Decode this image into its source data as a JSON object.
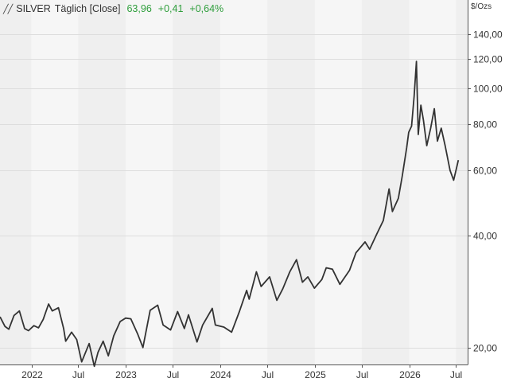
{
  "header": {
    "symbol_icon": "line-chart-icon",
    "title": "SILVER",
    "mode": "Täglich [Close]",
    "last": "63,96",
    "change": "+0,41",
    "change_pct": "+0,64%",
    "unit": "$/Ozs"
  },
  "colors": {
    "line": "#333333",
    "positive": "#2e9e3b",
    "band_dark": "#efefef",
    "band_light": "#f6f6f6",
    "grid": "#dddddd"
  },
  "chart_data": {
    "type": "line",
    "title": "SILVER",
    "xlabel": "",
    "ylabel": "$/Ozs",
    "scale": "log",
    "ylim": [
      18,
      155
    ],
    "xlim": [
      "2021-09-01",
      "2026-08-15"
    ],
    "y_ticks": [
      {
        "value": 20,
        "label": "20,00"
      },
      {
        "value": 40,
        "label": "40,00"
      },
      {
        "value": 60,
        "label": "60,00"
      },
      {
        "value": 80,
        "label": "80,00"
      },
      {
        "value": 100,
        "label": "100,00"
      },
      {
        "value": 120,
        "label": "120,00"
      },
      {
        "value": 140,
        "label": "140,00"
      }
    ],
    "x_ticks": [
      {
        "date": "2022-01-01",
        "label": "2022"
      },
      {
        "date": "2022-07-01",
        "label": "Jul"
      },
      {
        "date": "2023-01-01",
        "label": "2023"
      },
      {
        "date": "2023-07-01",
        "label": "Jul"
      },
      {
        "date": "2024-01-01",
        "label": "2024"
      },
      {
        "date": "2024-07-01",
        "label": "Jul"
      },
      {
        "date": "2025-01-01",
        "label": "2025"
      },
      {
        "date": "2025-07-01",
        "label": "Jul"
      },
      {
        "date": "2026-01-01",
        "label": "2026"
      },
      {
        "date": "2026-07-01",
        "label": "Jul"
      }
    ],
    "series": [
      {
        "values": [
          [
            "2021-09-01",
            24.2
          ],
          [
            "2021-09-20",
            22.8
          ],
          [
            "2021-10-05",
            22.4
          ],
          [
            "2021-10-25",
            24.4
          ],
          [
            "2021-11-15",
            25.1
          ],
          [
            "2021-12-05",
            22.5
          ],
          [
            "2021-12-20",
            22.2
          ],
          [
            "2022-01-10",
            22.9
          ],
          [
            "2022-01-28",
            22.6
          ],
          [
            "2022-02-15",
            23.8
          ],
          [
            "2022-03-08",
            26.2
          ],
          [
            "2022-03-22",
            25.1
          ],
          [
            "2022-04-15",
            25.6
          ],
          [
            "2022-05-05",
            22.5
          ],
          [
            "2022-05-13",
            20.8
          ],
          [
            "2022-06-05",
            22.0
          ],
          [
            "2022-06-25",
            21.0
          ],
          [
            "2022-07-14",
            18.3
          ],
          [
            "2022-08-12",
            20.5
          ],
          [
            "2022-09-01",
            17.8
          ],
          [
            "2022-09-15",
            19.4
          ],
          [
            "2022-10-05",
            20.8
          ],
          [
            "2022-10-25",
            19.0
          ],
          [
            "2022-11-15",
            21.5
          ],
          [
            "2022-12-10",
            23.5
          ],
          [
            "2022-12-31",
            24.0
          ],
          [
            "2023-01-20",
            23.9
          ],
          [
            "2023-02-15",
            21.8
          ],
          [
            "2023-03-08",
            20.0
          ],
          [
            "2023-04-05",
            25.2
          ],
          [
            "2023-05-04",
            26.0
          ],
          [
            "2023-05-25",
            23.0
          ],
          [
            "2023-06-23",
            22.3
          ],
          [
            "2023-07-20",
            25.0
          ],
          [
            "2023-08-15",
            22.5
          ],
          [
            "2023-08-31",
            24.5
          ],
          [
            "2023-10-03",
            20.7
          ],
          [
            "2023-10-25",
            23.0
          ],
          [
            "2023-12-01",
            25.5
          ],
          [
            "2023-12-13",
            23.0
          ],
          [
            "2024-01-15",
            22.7
          ],
          [
            "2024-02-14",
            22.0
          ],
          [
            "2024-03-15",
            25.0
          ],
          [
            "2024-04-12",
            28.5
          ],
          [
            "2024-04-22",
            27.0
          ],
          [
            "2024-05-20",
            32.0
          ],
          [
            "2024-06-07",
            29.2
          ],
          [
            "2024-07-10",
            31.0
          ],
          [
            "2024-08-07",
            26.8
          ],
          [
            "2024-08-30",
            28.8
          ],
          [
            "2024-09-26",
            32.0
          ],
          [
            "2024-10-22",
            34.5
          ],
          [
            "2024-11-14",
            30.0
          ],
          [
            "2024-12-05",
            31.0
          ],
          [
            "2024-12-30",
            28.9
          ],
          [
            "2025-01-28",
            30.5
          ],
          [
            "2025-02-14",
            32.8
          ],
          [
            "2025-03-10",
            32.5
          ],
          [
            "2025-04-08",
            29.6
          ],
          [
            "2025-05-15",
            32.3
          ],
          [
            "2025-06-09",
            36.0
          ],
          [
            "2025-07-14",
            38.5
          ],
          [
            "2025-08-01",
            36.8
          ],
          [
            "2025-08-29",
            40.5
          ],
          [
            "2025-09-23",
            44.0
          ],
          [
            "2025-10-15",
            53.5
          ],
          [
            "2025-10-28",
            46.5
          ],
          [
            "2025-11-20",
            50.5
          ],
          [
            "2025-12-05",
            58.0
          ],
          [
            "2025-12-22",
            69.0
          ],
          [
            "2025-12-30",
            76.0
          ],
          [
            "2026-01-10",
            79.0
          ],
          [
            "2026-01-20",
            95.0
          ],
          [
            "2026-01-29",
            118.0
          ],
          [
            "2026-02-05",
            75.0
          ],
          [
            "2026-02-15",
            90.0
          ],
          [
            "2026-02-25",
            82.0
          ],
          [
            "2026-03-10",
            70.0
          ],
          [
            "2026-03-25",
            78.0
          ],
          [
            "2026-04-08",
            88.0
          ],
          [
            "2026-04-20",
            72.0
          ],
          [
            "2026-05-05",
            78.0
          ],
          [
            "2026-05-20",
            70.0
          ],
          [
            "2026-06-08",
            60.0
          ],
          [
            "2026-06-22",
            56.5
          ],
          [
            "2026-07-02",
            60.5
          ],
          [
            "2026-07-10",
            63.96
          ]
        ]
      }
    ]
  }
}
